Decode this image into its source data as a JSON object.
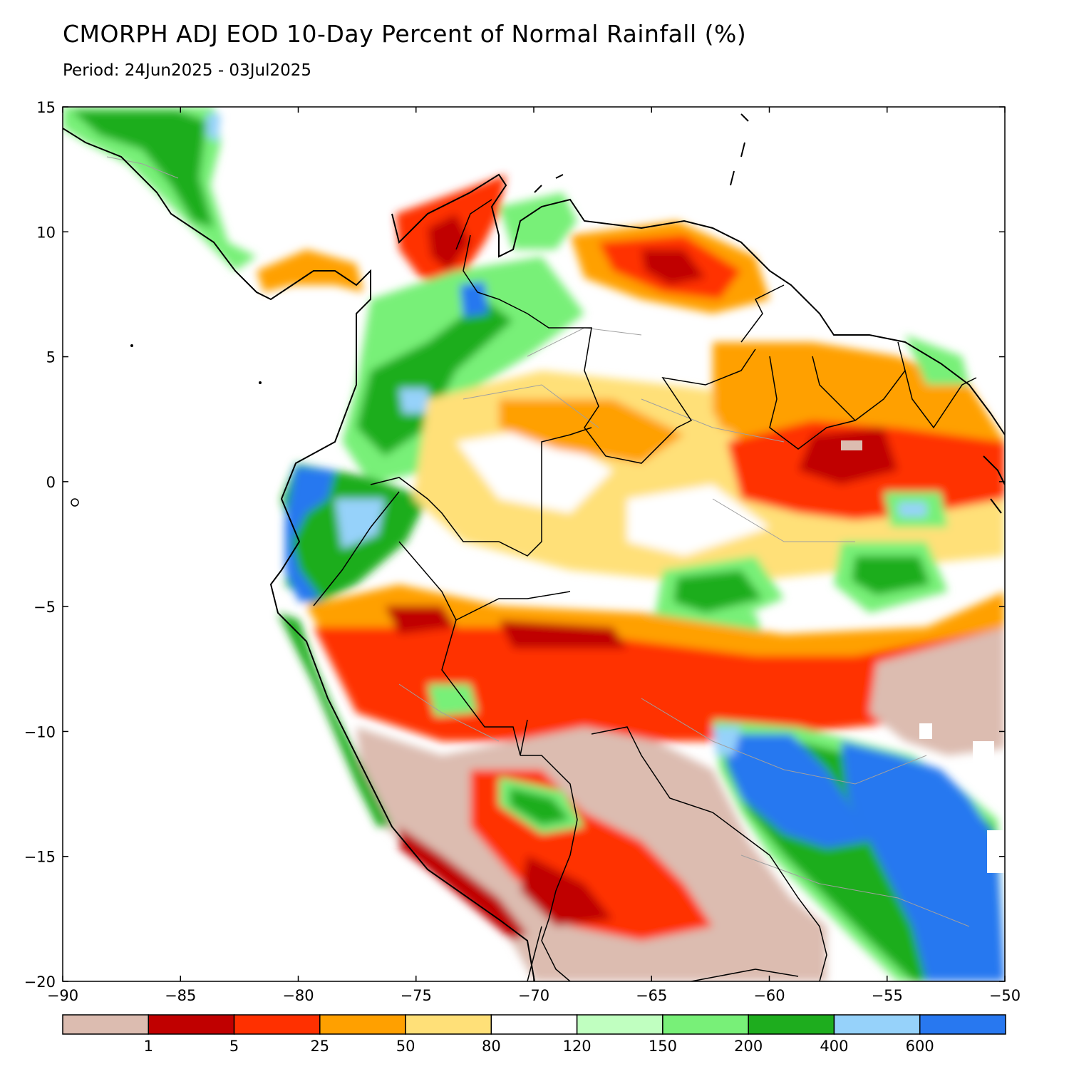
{
  "title": "CMORPH ADJ EOD 10-Day Percent of Normal Rainfall (%)",
  "subtitle": "Period: 24Jun2025 - 03Jul2025",
  "map": {
    "lon_range": [
      -90,
      -50
    ],
    "lat_range": [
      -20,
      15
    ],
    "lon_ticks": [
      -90,
      -85,
      -80,
      -75,
      -70,
      -65,
      -60,
      -55,
      -50
    ],
    "lat_ticks": [
      15,
      10,
      5,
      0,
      -5,
      -10,
      -15,
      -20
    ],
    "lon_tick_labels": [
      "−90",
      "−85",
      "−80",
      "−75",
      "−70",
      "−65",
      "−60",
      "−55",
      "−50"
    ],
    "lat_tick_labels": [
      "15",
      "10",
      "5",
      "0",
      "−5",
      "−10",
      "−15",
      "−20"
    ]
  },
  "legend": {
    "colors": [
      "#dcbcb0",
      "#c00000",
      "#ff3000",
      "#ffa000",
      "#ffe078",
      "#ffffff",
      "#c0ffc0",
      "#78f078",
      "#1ead1e",
      "#96d2fa",
      "#2878f0"
    ],
    "labels": [
      "1",
      "5",
      "25",
      "50",
      "80",
      "120",
      "150",
      "200",
      "400",
      "600"
    ]
  },
  "colors": {
    "land_background": "#ffffff",
    "ocean": "#ffffff",
    "coastline": "#000000",
    "borders": "#a0a0a0"
  }
}
